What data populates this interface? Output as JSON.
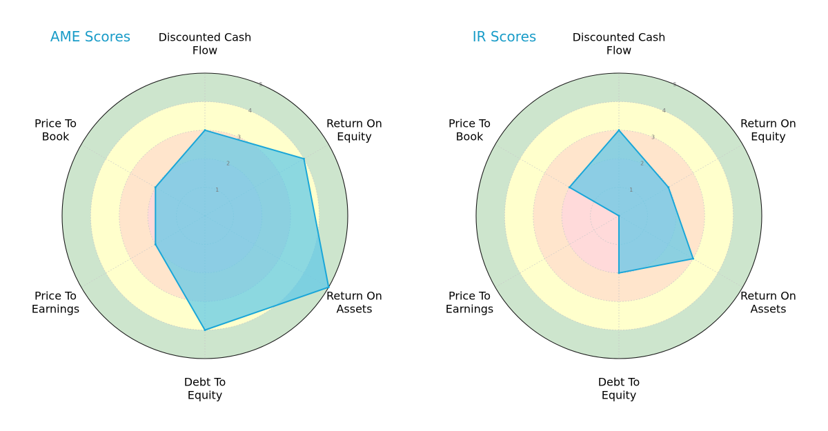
{
  "chart_data": [
    {
      "type": "radar",
      "title": "AME Scores",
      "categories": [
        "Discounted Cash\nFlow",
        "Return On\nEquity",
        "Return On\nAssets",
        "Debt To\nEquity",
        "Price To\nEarnings",
        "Price To\nBook"
      ],
      "values": [
        3,
        4,
        5,
        4,
        2,
        2
      ],
      "rlim": [
        0,
        5
      ],
      "rticks": [
        "1",
        "2",
        "3",
        "4",
        "5"
      ],
      "grid": true,
      "colors": {
        "series_fill": "#5bc8e8",
        "series_line": "#1aa6d8",
        "band_outer": "#cde5cd",
        "band_mid": "#ffffcc",
        "band_inner": "#ffe5cc",
        "band_core": "#ffdada",
        "title": "#1a9cc8"
      }
    },
    {
      "type": "radar",
      "title": "IR Scores",
      "categories": [
        "Discounted Cash\nFlow",
        "Return On\nEquity",
        "Return On\nAssets",
        "Debt To\nEquity",
        "Price To\nEarnings",
        "Price To\nBook"
      ],
      "values": [
        3,
        2,
        3,
        2,
        0,
        2
      ],
      "rlim": [
        0,
        5
      ],
      "rticks": [
        "1",
        "2",
        "3",
        "4",
        "5"
      ],
      "grid": true,
      "colors": {
        "series_fill": "#5bc8e8",
        "series_line": "#1aa6d8",
        "band_outer": "#cde5cd",
        "band_mid": "#ffffcc",
        "band_inner": "#ffe5cc",
        "band_core": "#ffdada",
        "title": "#1a9cc8"
      }
    }
  ]
}
